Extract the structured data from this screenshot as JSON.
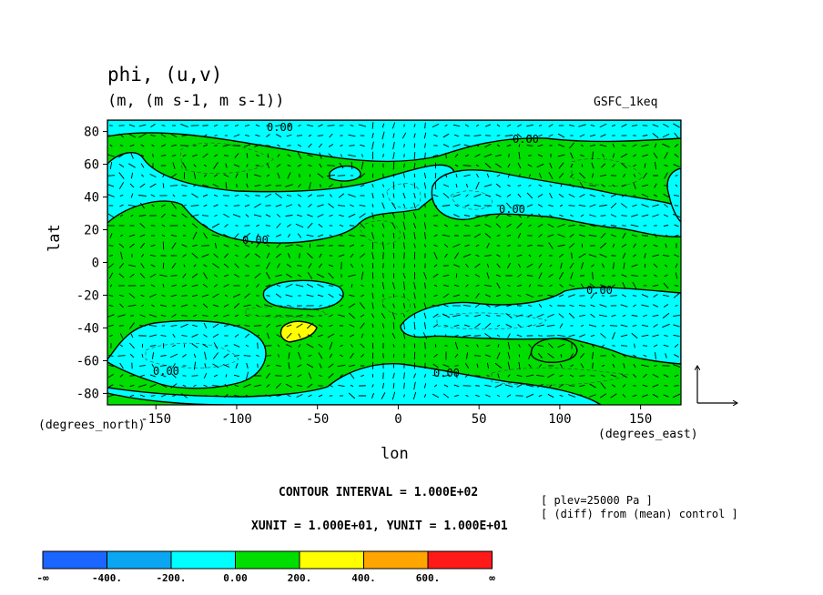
{
  "chart_data": {
    "type": "heatmap",
    "title": "phi, (u,v)",
    "units_label": "(m, (m s-1, m s-1))",
    "experiment": "GSFC_1keq",
    "xlabel": "lon",
    "ylabel": "lat",
    "x_unit_label": "(degrees_east)",
    "y_unit_label": "(degrees_north)",
    "xlim": [
      -180,
      175
    ],
    "ylim": [
      -87,
      87
    ],
    "x_ticks": [
      -150,
      -100,
      -50,
      0,
      50,
      100,
      150
    ],
    "x_tick_labels": [
      "-150",
      "-100",
      "-50",
      "0",
      "50",
      "100",
      "150"
    ],
    "y_ticks": [
      80,
      60,
      40,
      20,
      0,
      -20,
      -40,
      -60,
      -80
    ],
    "y_tick_labels": [
      "80",
      "60",
      "40",
      "20",
      "0",
      "-20",
      "-40",
      "-60",
      "-80"
    ],
    "contour_interval_text": "CONTOUR INTERVAL = 1.000E+02",
    "vector_unit_text": "XUNIT = 1.000E+01, YUNIT = 1.000E+01",
    "notes": [
      "[ plev=25000 Pa ]",
      "[ (diff) from (mean) control ]"
    ],
    "contour_label": "0.00",
    "colorbar": {
      "labels": [
        "-∞",
        "-400.",
        "-200.",
        "0.00",
        "200.",
        "400.",
        "600.",
        "∞"
      ],
      "colors": [
        "#1a66ff",
        "#0aa6f2",
        "#00ffff",
        "#00dd00",
        "#ffff00",
        "#ffa500",
        "#ff1a1a"
      ]
    },
    "regions_negative": [
      {
        "lon": [
          -180,
          -155,
          -165
        ],
        "lat": [
          70,
          60,
          50
        ],
        "band": "-200 to 0"
      },
      {
        "lon": -110,
        "lat": 30,
        "band": "-200 to 0"
      },
      {
        "lon": -38,
        "lat": 53,
        "band": "-200 to 0"
      },
      {
        "lon": 55,
        "lat": 38,
        "band": "-200 to 0"
      },
      {
        "lon": 135,
        "lat": 42,
        "band": "-200 to 0"
      },
      {
        "lon": -60,
        "lat": -20,
        "band": "-200 to 0"
      },
      {
        "lon": 60,
        "lat": -40,
        "band": "-200 to 0"
      },
      {
        "lon": -140,
        "lat": -55,
        "band": "-200 to 0"
      },
      {
        "lon": 30,
        "lat": -82,
        "band": "-200 to 0"
      }
    ],
    "regions_positive": [
      {
        "lon": -67,
        "lat": -43,
        "band": "200 to 400"
      }
    ]
  }
}
